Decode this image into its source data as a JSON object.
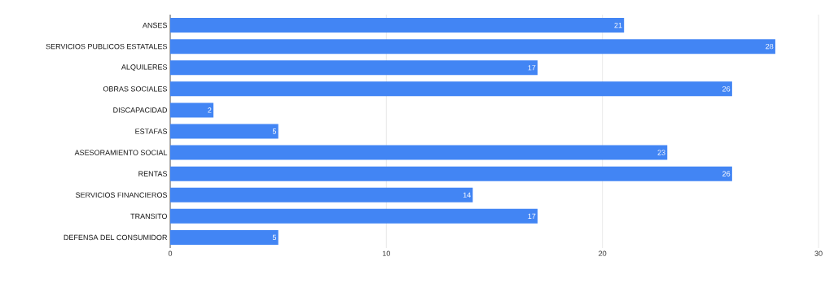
{
  "chart_data": {
    "type": "bar",
    "orientation": "horizontal",
    "categories": [
      "ANSES",
      "SERVICIOS PUBLICOS ESTATALES",
      "ALQUILERES",
      "OBRAS SOCIALES",
      "DISCAPACIDAD",
      "ESTAFAS",
      "ASESORAMIENTO SOCIAL",
      "RENTAS",
      "SERVICIOS FINANCIEROS",
      "TRANSITO",
      "DEFENSA DEL CONSUMIDOR"
    ],
    "values": [
      21,
      28,
      17,
      26,
      2,
      5,
      23,
      26,
      14,
      17,
      5
    ],
    "color": "#4285f4",
    "xlim": [
      0,
      30
    ],
    "xticks": [
      0,
      10,
      20,
      30
    ],
    "grid": "x",
    "data_labels": true
  }
}
